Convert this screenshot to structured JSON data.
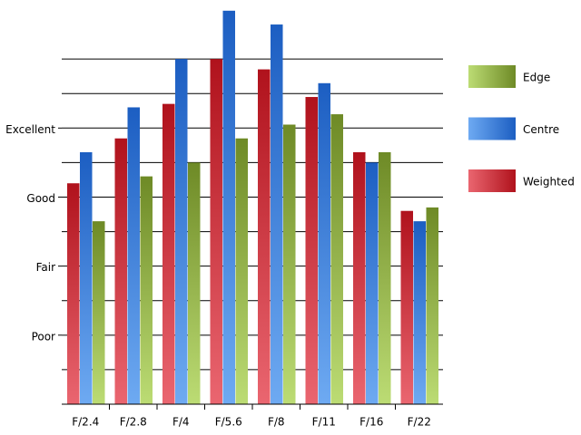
{
  "chart_data": {
    "type": "bar",
    "categories": [
      "F/2.4",
      "F/2.8",
      "F/4",
      "F/5.6",
      "F/8",
      "F/11",
      "F/16",
      "F/22"
    ],
    "series": [
      {
        "name": "Weighted",
        "color": "#b0121c",
        "color_light": "#ea6670",
        "values": [
          6.4,
          7.7,
          8.7,
          10.0,
          9.7,
          8.9,
          7.3,
          5.6
        ]
      },
      {
        "name": "Centre",
        "color": "#1c5ec2",
        "color_light": "#6eaaf2",
        "values": [
          7.3,
          8.6,
          10.0,
          11.4,
          11.0,
          9.3,
          7.0,
          5.3
        ]
      },
      {
        "name": "Edge",
        "color": "#6e8a26",
        "color_light": "#bcdc74",
        "values": [
          5.3,
          6.6,
          7.0,
          7.7,
          8.1,
          8.4,
          7.3,
          5.7
        ]
      }
    ],
    "ylim": [
      0,
      11.5
    ],
    "yticks": [
      {
        "value": 2,
        "label": "Poor"
      },
      {
        "value": 4,
        "label": "Fair"
      },
      {
        "value": 6,
        "label": "Good"
      },
      {
        "value": 8,
        "label": "Excellent"
      }
    ],
    "grid_lines": [
      1,
      2,
      3,
      4,
      5,
      6,
      7,
      8,
      9,
      10
    ],
    "legend": "right"
  }
}
